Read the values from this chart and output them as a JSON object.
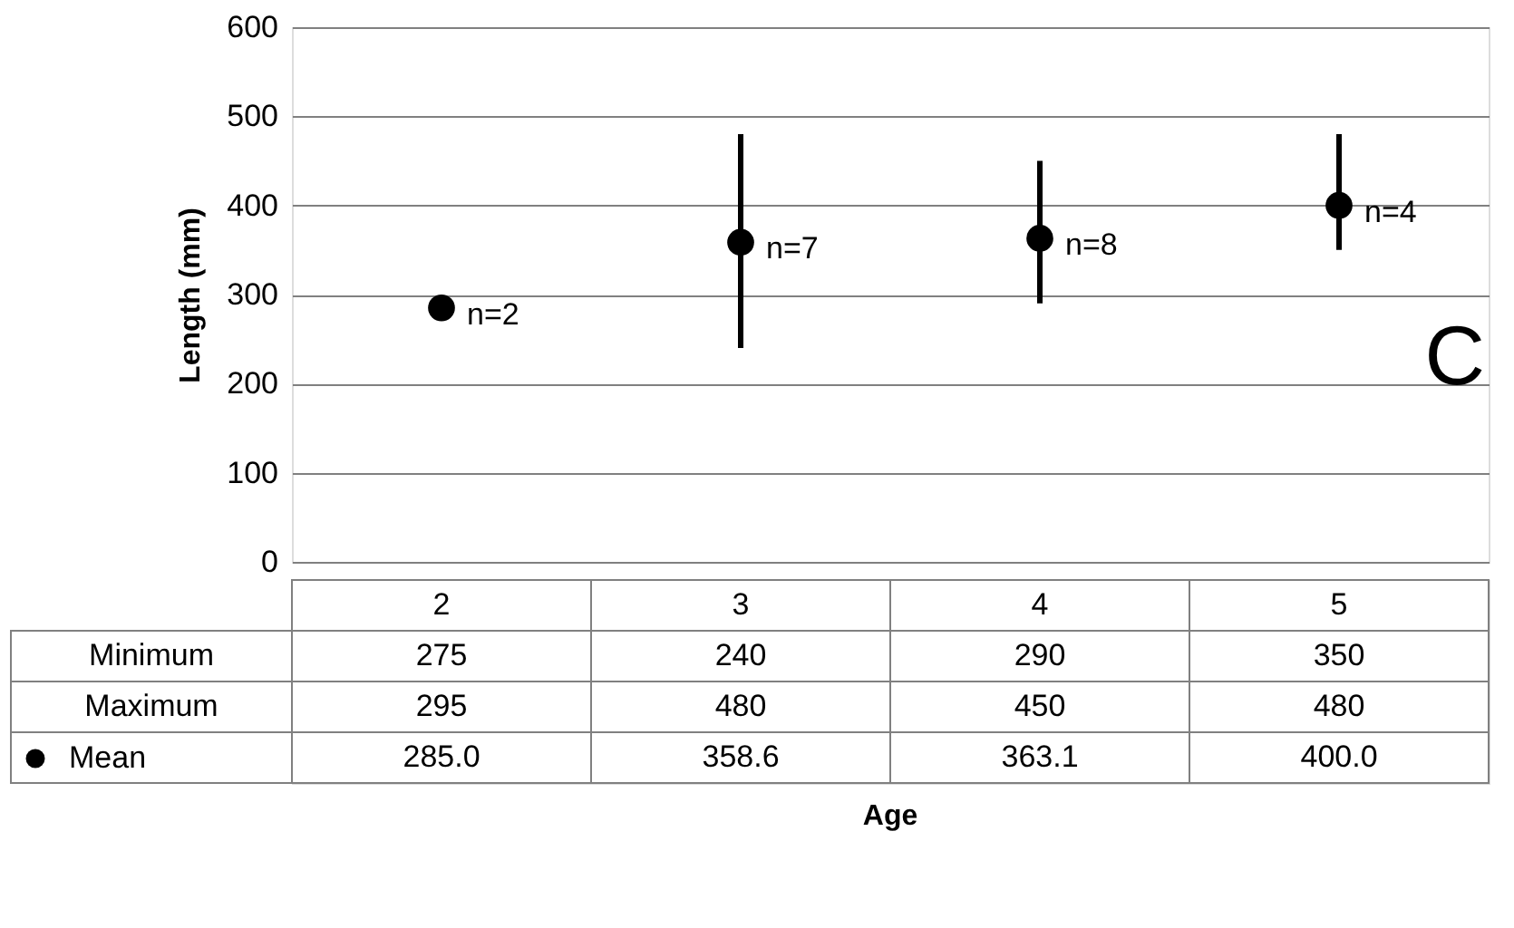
{
  "chart_data": {
    "type": "scatter",
    "categories": [
      "2",
      "3",
      "4",
      "5"
    ],
    "ylabel": "Length (mm)",
    "series": [
      {
        "name": "Mean",
        "color": "#000000",
        "values": [
          285.0,
          358.6,
          363.1,
          400.0
        ],
        "errors": [
          [
            275,
            295
          ],
          [
            240,
            480
          ],
          [
            290,
            450
          ],
          [
            350,
            480
          ]
        ],
        "value_labels": [
          "285.0",
          "358.6",
          "363.1",
          "400.0"
        ]
      }
    ],
    "ylim": [
      0,
      600
    ],
    "yticks": [
      0,
      100,
      200,
      300,
      400,
      500,
      600
    ],
    "grid": "y",
    "tick_labels": "y",
    "legend": "bottom left",
    "marker": "circle",
    "annotations": [
      {
        "text": "n=2",
        "x": "2",
        "y": 285.0
      },
      {
        "text": "n=7",
        "x": "3",
        "y": 358.6
      },
      {
        "text": "n=8",
        "x": "4",
        "y": 363.1
      },
      {
        "text": "n=4",
        "x": "5",
        "y": 400.0
      },
      "C",
      "Age",
      "Minimum",
      "275",
      "240",
      "290",
      "350",
      "Maximum",
      "295",
      "480",
      "450",
      "480"
    ]
  }
}
